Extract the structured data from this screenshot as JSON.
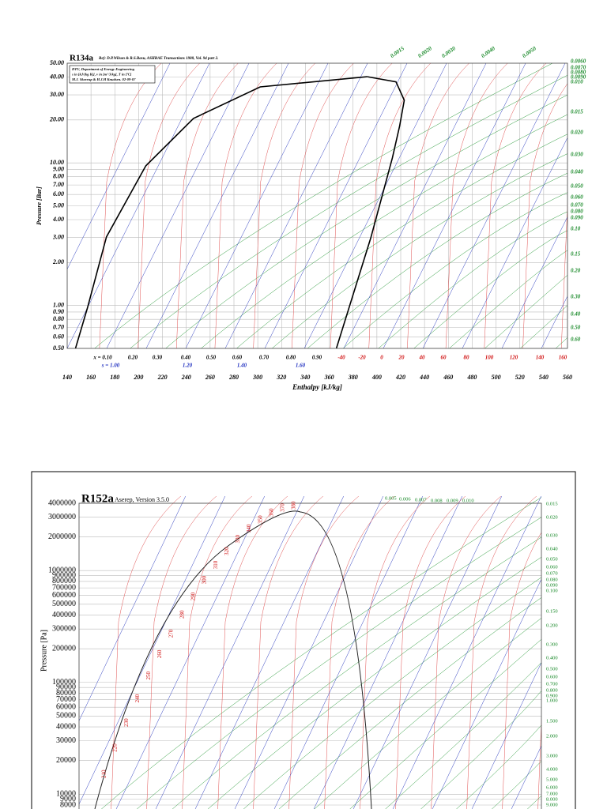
{
  "chart_data": [
    {
      "type": "line",
      "title": "R134a",
      "subtitle": "Ref: D.P.Wilson & R.S.Basu, ASHRAE Transactions 1988, Vol. 94 part 2.",
      "info": [
        "DTU, Department of Energy Engineering",
        "s in [kJ/(kg K)], v in [m^3/kg], T in [ºC]",
        "M.J. Skovrup & H.J.H Knudsen. 02-09-07"
      ],
      "x_label": "Enthalpy [kJ/kg]",
      "y_label": "Pressure [Bar]",
      "log_y": true,
      "grid": true,
      "xlim": [
        140,
        560
      ],
      "ylim": [
        0.5,
        50
      ],
      "xticks": [
        140,
        160,
        180,
        200,
        220,
        240,
        260,
        280,
        300,
        320,
        340,
        360,
        380,
        400,
        420,
        440,
        460,
        480,
        500,
        520,
        540,
        560
      ],
      "yticks": [
        {
          "value": 0.5,
          "label": "0.50"
        },
        {
          "value": 0.6,
          "label": "0.60"
        },
        {
          "value": 0.7,
          "label": "0.70"
        },
        {
          "value": 0.8,
          "label": "0.80"
        },
        {
          "value": 0.9,
          "label": "0.90"
        },
        {
          "value": 1,
          "label": "1.00"
        },
        {
          "value": 2,
          "label": "2.00"
        },
        {
          "value": 3,
          "label": "3.00"
        },
        {
          "value": 4,
          "label": "4.00"
        },
        {
          "value": 5,
          "label": "5.00"
        },
        {
          "value": 6,
          "label": "6.00"
        },
        {
          "value": 7,
          "label": "7.00"
        },
        {
          "value": 8,
          "label": "8.00"
        },
        {
          "value": 9,
          "label": "9.00"
        },
        {
          "value": 10,
          "label": "10.00"
        },
        {
          "value": 20,
          "label": "20.00"
        },
        {
          "value": 30,
          "label": "30.00"
        },
        {
          "value": 40,
          "label": "40.00"
        },
        {
          "value": 50,
          "label": "50.00"
        }
      ],
      "series": [
        {
          "color": "#000000",
          "x": [
            147,
            157,
            173,
            206,
            246,
            302,
            392
          ],
          "values": [
            0.5,
            0.96,
            3.03,
            9.53,
            20.5,
            34.1,
            40.2
          ]
        },
        {
          "color": "#000000",
          "x": [
            392,
            416,
            423,
            419,
            413,
            395,
            366
          ],
          "values": [
            40.2,
            37,
            27.5,
            18,
            10.8,
            3.0,
            0.5
          ]
        }
      ],
      "temperature_labels": [
        "-40",
        "-20",
        "0",
        "20",
        "40",
        "60",
        "80",
        "100",
        "120",
        "140",
        "160"
      ],
      "quality_labels": [
        "x = 0.10",
        "0.20",
        "0.30",
        "0.40",
        "0.50",
        "0.60",
        "0.70",
        "0.80",
        "0.90"
      ],
      "entropy_labels": [
        "s = 1.00",
        "1.20",
        "1.40",
        "1.60"
      ],
      "volume_labels": [
        "0.0060",
        "0.0070",
        "0.0080",
        "0.0090",
        "0.010",
        "0.015",
        "0.020",
        "0.030",
        "0.040",
        "0.050",
        "0.060",
        "0.070",
        "0.080",
        "0.090",
        "0.10",
        "0.15",
        "0.20",
        "0.30",
        "0.40",
        "0.50",
        "0.60"
      ],
      "top_volume_labels": [
        "0.0015",
        "0.0020",
        "0.0030",
        "0.0040",
        "0.0050"
      ]
    },
    {
      "type": "line",
      "title": "R152a",
      "subtitle": "Aserep, Version 3.5.0",
      "y_label": "Pressure [Pa]",
      "log_y": true,
      "grid": true,
      "ylim": [
        8000,
        4000000
      ],
      "yticks": [
        4000000,
        3000000,
        2000000,
        1000000,
        900000,
        800000,
        700000,
        600000,
        500000,
        400000,
        300000,
        200000,
        100000,
        90000,
        80000,
        70000,
        60000,
        50000,
        40000,
        30000,
        20000,
        10000,
        9000,
        8000
      ],
      "series": [],
      "temperature_labels": [
        "210",
        "220",
        "230",
        "240",
        "250",
        "260",
        "270",
        "280",
        "290",
        "300",
        "310",
        "320",
        "330",
        "340",
        "350",
        "360",
        "370",
        "380"
      ],
      "volume_labels": [
        "0.015",
        "0.020",
        "0.030",
        "0.040",
        "0.050",
        "0.060",
        "0.070",
        "0.080",
        "0.090",
        "0.100",
        "0.150",
        "0.200",
        "0.300",
        "0.400",
        "0.500",
        "0.600",
        "0.700",
        "0.800",
        "0.900",
        "1.000",
        "1.500",
        "2.000",
        "3.000",
        "4.000",
        "5.000",
        "6.000",
        "7.000",
        "8.000",
        "9.000"
      ],
      "top_volume_labels": [
        "0.005",
        "0.006",
        "0.007",
        "0.008",
        "0.009",
        "0.010"
      ]
    }
  ]
}
